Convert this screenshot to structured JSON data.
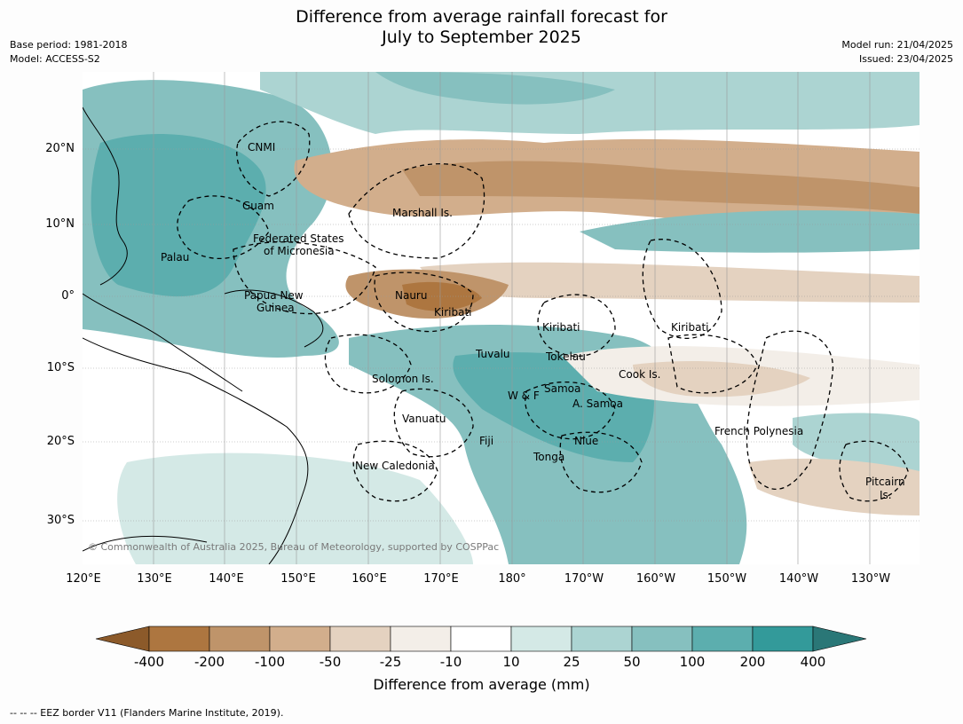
{
  "title": {
    "line1": "Difference from average rainfall forecast for",
    "line2": "July to September 2025"
  },
  "meta_left": {
    "base_period": "Base period: 1981-2018",
    "model": "Model: ACCESS-S2"
  },
  "meta_right": {
    "model_run": "Model run: 21/04/2025",
    "issued": "Issued: 23/04/2025"
  },
  "map": {
    "lat_labels": [
      "20°N",
      "10°N",
      "0°",
      "10°S",
      "20°S",
      "30°S"
    ],
    "lon_labels": [
      "120°E",
      "130°E",
      "140°E",
      "150°E",
      "160°E",
      "170°E",
      "180°",
      "170°W",
      "160°W",
      "150°W",
      "140°W",
      "130°W"
    ],
    "places": [
      "CNMI",
      "Guam",
      "Marshall Is.",
      "Federated States",
      "of Micronesia",
      "Palau",
      "Nauru",
      "Papua New",
      "Guinea",
      "Kiribati",
      "Kiribati",
      "Kiribati",
      "Tuvalu",
      "Tokelau",
      "Cook Is.",
      "Solomon Is.",
      "Samoa",
      "W & F",
      "A. Samoa",
      "Vanuatu",
      "Fiji",
      "Niue",
      "Tonga",
      "French Polynesia",
      "New Caledonia",
      "Pitcairn",
      "Is."
    ],
    "copyright": "© Commonwealth of Australia 2025, Bureau of Meteorology, supported by COSPPac"
  },
  "colorbar": {
    "ticks": [
      "-400",
      "-200",
      "-100",
      "-50",
      "-25",
      "-10",
      "10",
      "25",
      "50",
      "100",
      "200",
      "400"
    ],
    "colors": [
      "#8c5a2a",
      "#ad7640",
      "#bf946a",
      "#d2ae8c",
      "#e4d2c0",
      "#f3eee8",
      "#ffffff",
      "#d4e9e6",
      "#acd4d2",
      "#86c0bf",
      "#5caeae",
      "#339a9a",
      "#2a7777"
    ],
    "label": "Difference from average (mm)"
  },
  "footnote": "--  --  -- EEZ border V11 (Flanders Marine Institute, 2019)."
}
